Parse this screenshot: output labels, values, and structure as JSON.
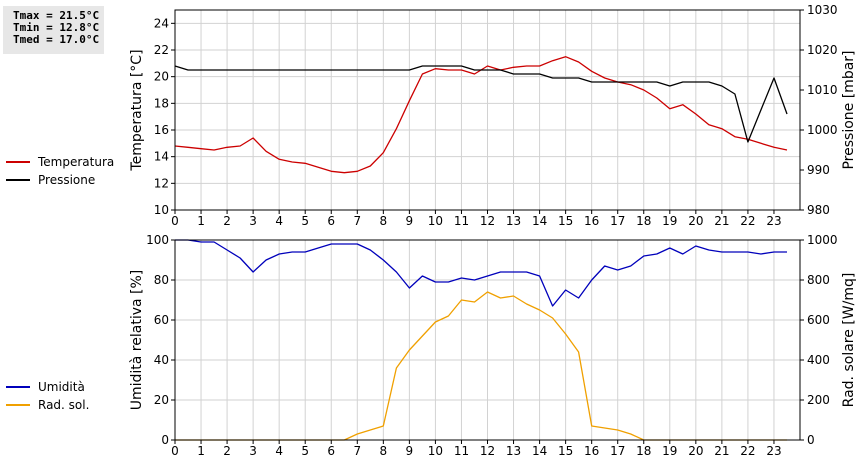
{
  "stats": {
    "tmax": "Tmax = 21.5°C",
    "tmin": "Tmin = 12.8°C",
    "tmed": "Tmed = 17.0°C"
  },
  "colors": {
    "temperature": "#cc0000",
    "pressure": "#000000",
    "humidity": "#0000bb",
    "solar": "#f0a000",
    "grid": "#d2d2d2"
  },
  "chart_data": [
    {
      "type": "line",
      "x_ticks": [
        "0",
        "1",
        "2",
        "3",
        "4",
        "5",
        "6",
        "7",
        "8",
        "9",
        "10",
        "11",
        "12",
        "13",
        "14",
        "15",
        "16",
        "17",
        "18",
        "19",
        "20",
        "21",
        "22",
        "23"
      ],
      "xlim": [
        0,
        24
      ],
      "ylabel": "Temperatura [°C]",
      "ylim": [
        10,
        25
      ],
      "y_ticks": [
        "10",
        "12",
        "14",
        "16",
        "18",
        "20",
        "22",
        "24"
      ],
      "y2label": "Pressione [mbar]",
      "y2lim": [
        980,
        1030
      ],
      "y2_ticks": [
        "980",
        "990",
        "1000",
        "1010",
        "1020",
        "1030"
      ],
      "grid": true,
      "legend_position": "left",
      "series": [
        {
          "name": "Temperatura",
          "axis": "left",
          "x": [
            0,
            0.5,
            1,
            1.5,
            2,
            2.5,
            3,
            3.5,
            4,
            4.5,
            5,
            5.5,
            6,
            6.5,
            7,
            7.5,
            8,
            8.5,
            9,
            9.5,
            10,
            10.5,
            11,
            11.5,
            12,
            12.5,
            13,
            13.5,
            14,
            14.5,
            15,
            15.5,
            16,
            16.5,
            17,
            17.5,
            18,
            18.5,
            19,
            19.5,
            20,
            20.5,
            21,
            21.5,
            22,
            22.5,
            23,
            23.5
          ],
          "values": [
            14.8,
            14.7,
            14.6,
            14.5,
            14.7,
            14.8,
            15.4,
            14.4,
            13.8,
            13.6,
            13.5,
            13.2,
            12.9,
            12.8,
            12.9,
            13.3,
            14.3,
            16.1,
            18.2,
            20.2,
            20.6,
            20.5,
            20.5,
            20.2,
            20.8,
            20.5,
            20.7,
            20.8,
            20.8,
            21.2,
            21.5,
            21.1,
            20.4,
            19.9,
            19.6,
            19.4,
            19.0,
            18.4,
            17.6,
            17.9,
            17.2,
            16.4,
            16.1,
            15.5,
            15.3,
            15.0,
            14.7,
            14.5
          ]
        },
        {
          "name": "Pressione",
          "axis": "right",
          "x": [
            0,
            0.5,
            1,
            1.5,
            2,
            2.5,
            3,
            3.5,
            4,
            4.5,
            5,
            5.5,
            6,
            6.5,
            7,
            7.5,
            8,
            8.5,
            9,
            9.5,
            10,
            10.5,
            11,
            11.5,
            12,
            12.5,
            13,
            13.5,
            14,
            14.5,
            15,
            15.5,
            16,
            16.5,
            17,
            17.5,
            18,
            18.5,
            19,
            19.5,
            20,
            20.5,
            21,
            21.5,
            22,
            22.5,
            23,
            23.5
          ],
          "values": [
            1016,
            1015,
            1015,
            1015,
            1015,
            1015,
            1015,
            1015,
            1015,
            1015,
            1015,
            1015,
            1015,
            1015,
            1015,
            1015,
            1015,
            1015,
            1015,
            1016,
            1016,
            1016,
            1016,
            1015,
            1015,
            1015,
            1014,
            1014,
            1014,
            1013,
            1013,
            1013,
            1012,
            1012,
            1012,
            1012,
            1012,
            1012,
            1011,
            1012,
            1012,
            1012,
            1011,
            1009,
            997,
            1005,
            1013,
            1004
          ]
        }
      ]
    },
    {
      "type": "line",
      "x_ticks": [
        "0",
        "1",
        "2",
        "3",
        "4",
        "5",
        "6",
        "7",
        "8",
        "9",
        "10",
        "11",
        "12",
        "13",
        "14",
        "15",
        "16",
        "17",
        "18",
        "19",
        "20",
        "21",
        "22",
        "23"
      ],
      "xlim": [
        0,
        24
      ],
      "ylabel": "Umidità relativa [%]",
      "ylim": [
        0,
        100
      ],
      "y_ticks": [
        "0",
        "20",
        "40",
        "60",
        "80",
        "100"
      ],
      "y2label": "Rad. solare [W/mq]",
      "y2lim": [
        0,
        1000
      ],
      "y2_ticks": [
        "0",
        "200",
        "400",
        "600",
        "800",
        "1000"
      ],
      "grid": true,
      "legend_position": "left",
      "series": [
        {
          "name": "Umidità",
          "axis": "left",
          "x": [
            0,
            0.5,
            1,
            1.5,
            2,
            2.5,
            3,
            3.5,
            4,
            4.5,
            5,
            5.5,
            6,
            6.5,
            7,
            7.5,
            8,
            8.5,
            9,
            9.5,
            10,
            10.5,
            11,
            11.5,
            12,
            12.5,
            13,
            13.5,
            14,
            14.5,
            15,
            15.5,
            16,
            16.5,
            17,
            17.5,
            18,
            18.5,
            19,
            19.5,
            20,
            20.5,
            21,
            21.5,
            22,
            22.5,
            23,
            23.5
          ],
          "values": [
            100,
            100,
            99,
            99,
            95,
            91,
            84,
            90,
            93,
            94,
            94,
            96,
            98,
            98,
            98,
            95,
            90,
            84,
            76,
            82,
            79,
            79,
            81,
            80,
            82,
            84,
            84,
            84,
            82,
            67,
            75,
            71,
            80,
            87,
            85,
            87,
            92,
            93,
            96,
            93,
            97,
            95,
            94,
            94,
            94,
            93,
            94,
            94
          ]
        },
        {
          "name": "Rad. sol.",
          "axis": "right",
          "x": [
            0,
            0.5,
            1,
            1.5,
            2,
            2.5,
            3,
            3.5,
            4,
            4.5,
            5,
            5.5,
            6,
            6.5,
            7,
            7.5,
            8,
            8.5,
            9,
            9.5,
            10,
            10.5,
            11,
            11.5,
            12,
            12.5,
            13,
            13.5,
            14,
            14.5,
            15,
            15.5,
            16,
            16.5,
            17,
            17.5,
            18,
            18.5,
            19,
            19.5,
            20,
            20.5,
            21,
            21.5,
            22,
            22.5,
            23,
            23.5
          ],
          "values": [
            0,
            0,
            0,
            0,
            0,
            0,
            0,
            0,
            0,
            0,
            0,
            0,
            0,
            0,
            30,
            50,
            70,
            360,
            450,
            520,
            590,
            620,
            700,
            690,
            740,
            710,
            720,
            680,
            650,
            610,
            530,
            440,
            70,
            60,
            50,
            30,
            0,
            0,
            0,
            0,
            0,
            0,
            0,
            0,
            0,
            0,
            0,
            0
          ]
        }
      ]
    }
  ]
}
